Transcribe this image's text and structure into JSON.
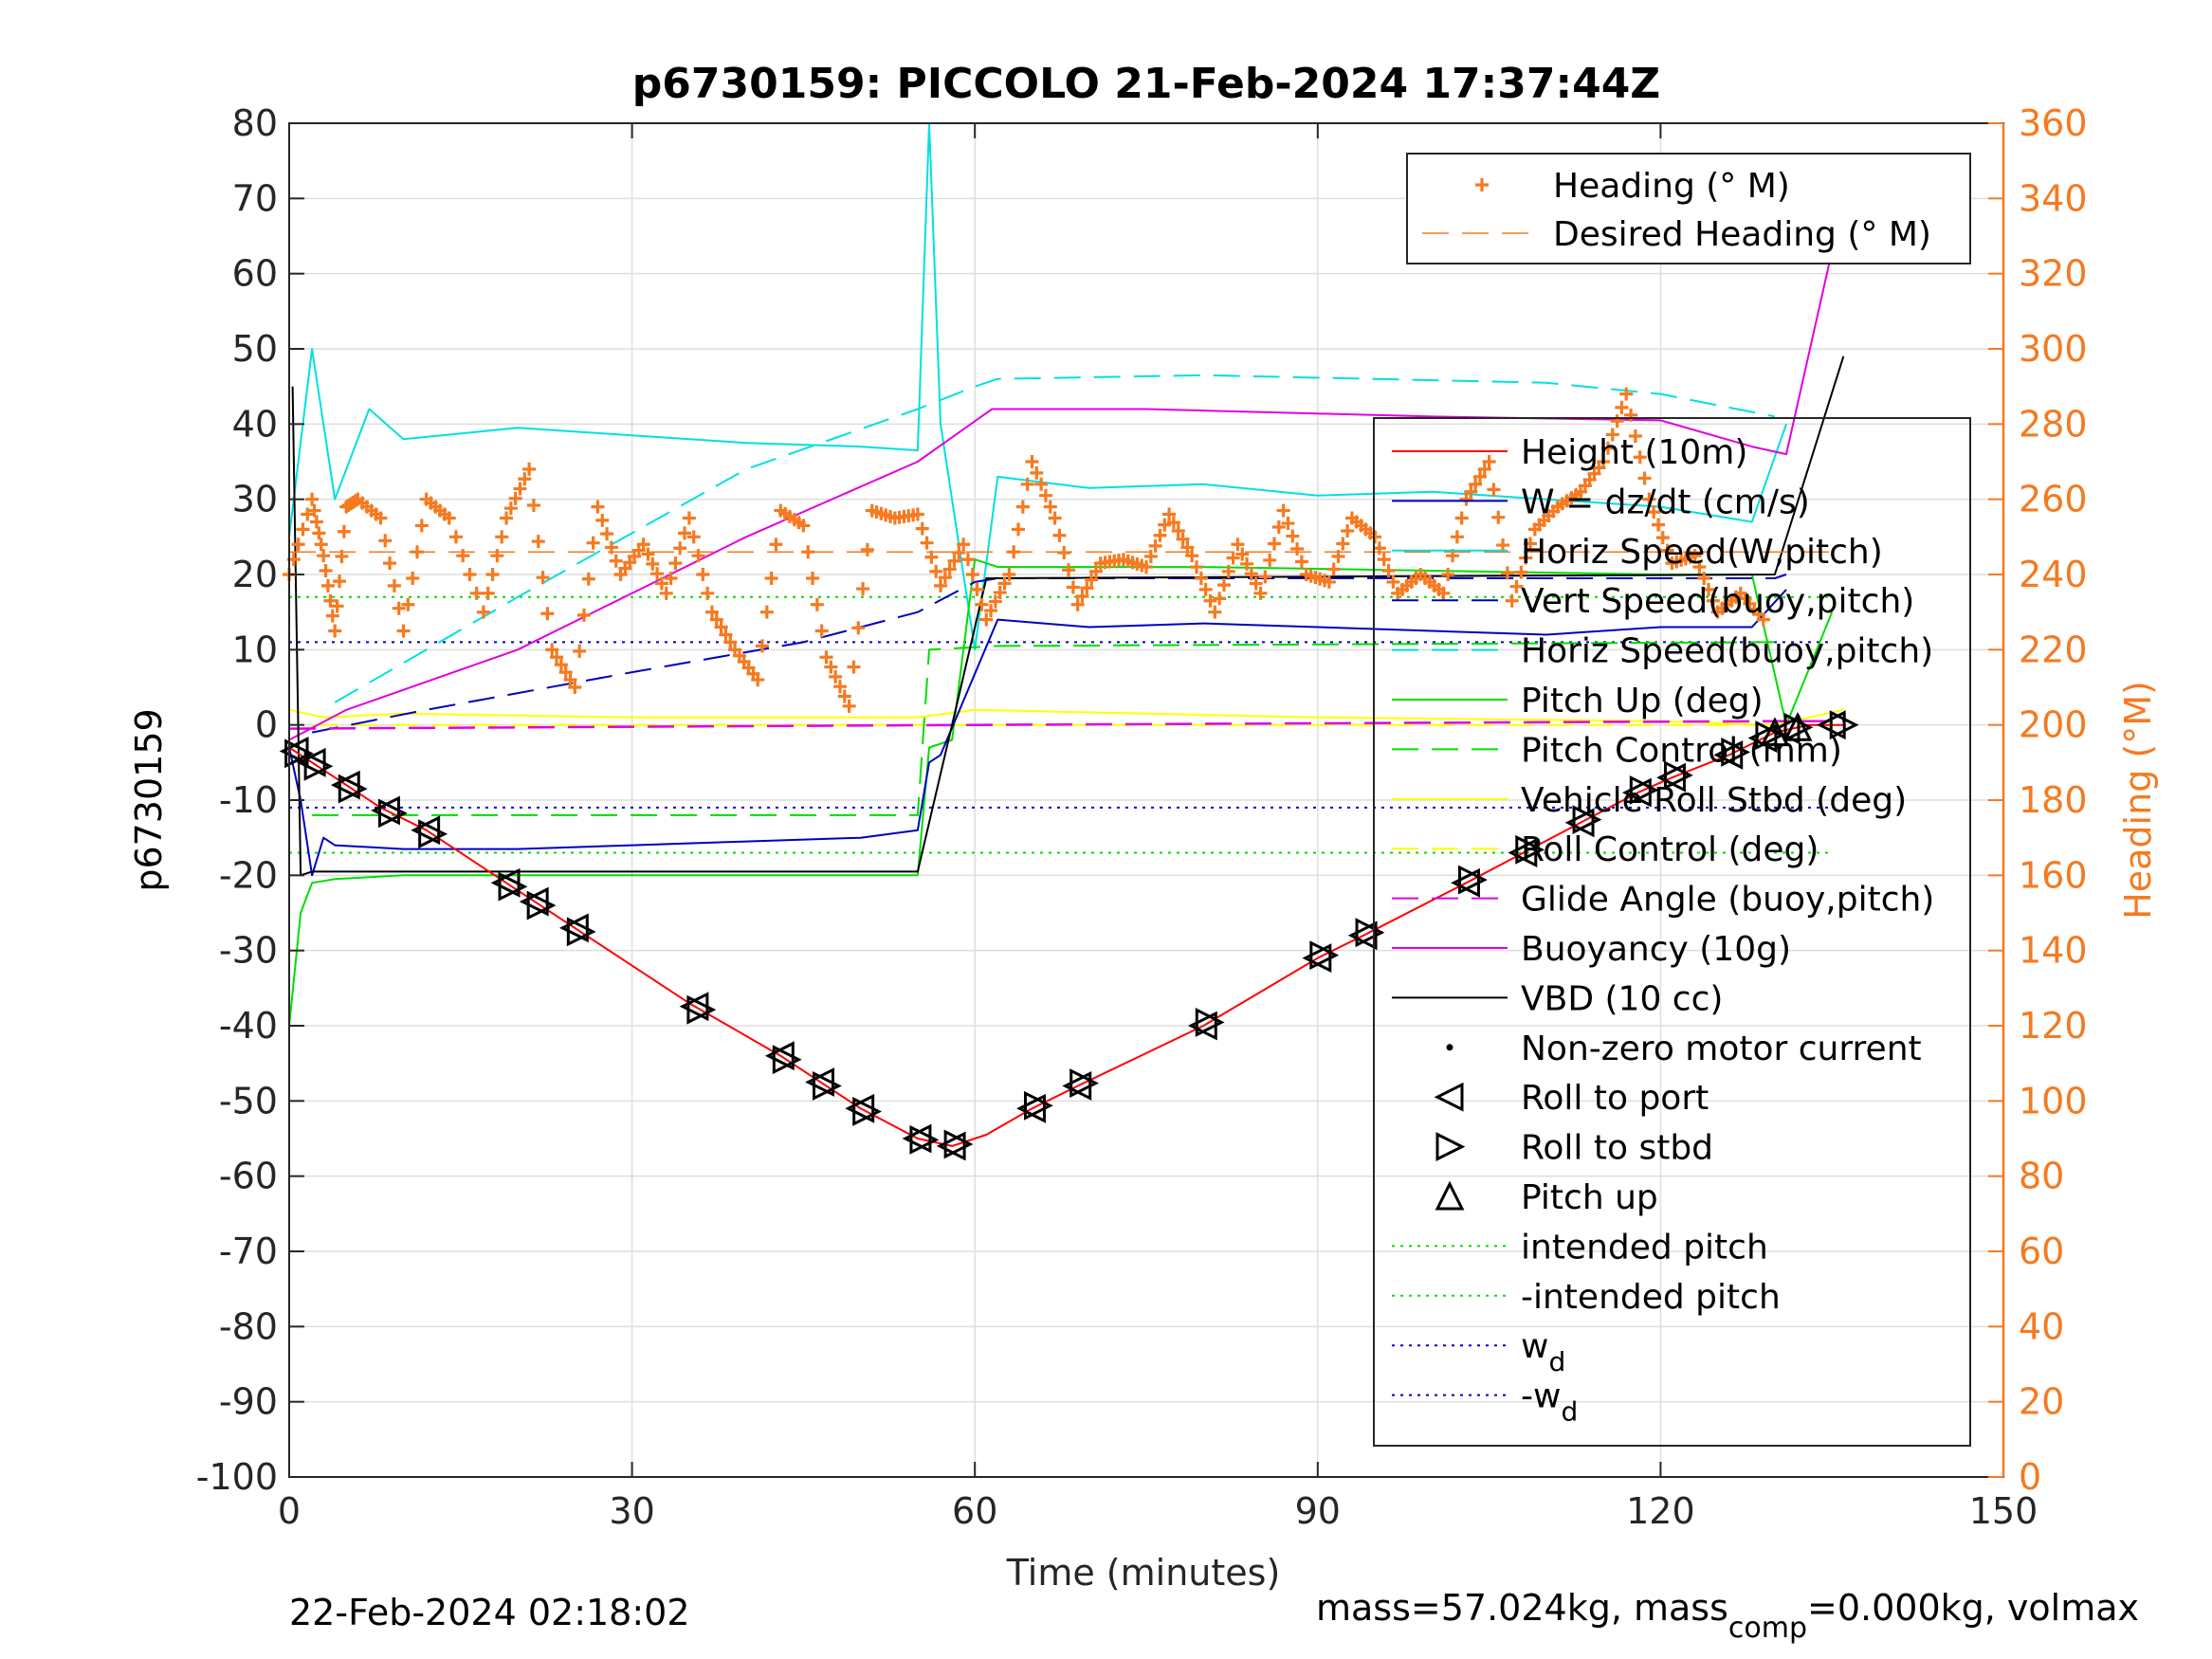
{
  "chart_data": {
    "type": "line",
    "title": "p6730159: PICCOLO 21-Feb-2024 17:37:44Z",
    "xlabel": "Time (minutes)",
    "ylabel_left": "p6730159",
    "ylabel_right": "Heading (°M)",
    "xlim": [
      0,
      150
    ],
    "ylim_left": [
      -100,
      80
    ],
    "ylim_right": [
      0,
      360
    ],
    "x_ticks": [
      "0",
      "30",
      "60",
      "90",
      "120",
      "150"
    ],
    "y_ticks_left": [
      "-100",
      "-90",
      "-80",
      "-70",
      "-60",
      "-50",
      "-40",
      "-30",
      "-20",
      "-10",
      "0",
      "10",
      "20",
      "30",
      "40",
      "50",
      "60",
      "70",
      "80"
    ],
    "y_ticks_right": [
      "0",
      "20",
      "40",
      "60",
      "80",
      "100",
      "120",
      "140",
      "160",
      "180",
      "200",
      "220",
      "240",
      "260",
      "280",
      "300",
      "320",
      "340",
      "360"
    ],
    "grid": true,
    "footer_left": "22-Feb-2024 02:18:02",
    "footer_right": {
      "pre": "mass=57.024kg, mass",
      "sub": "comp",
      "post": "=0.000kg, volmax"
    },
    "colors": {
      "heading": "#f57a20",
      "height": "#ff0000",
      "w": "#0000c0",
      "horiz_w": "#00e0e0",
      "vert_buoy": "#0000c0",
      "horiz_buoy": "#00e0e0",
      "pitch": "#00dd00",
      "pitch_control": "#00dd00",
      "roll": "#ffff00",
      "roll_control": "#ffff00",
      "glide": "#e000e0",
      "buoyancy": "#e000e0",
      "vbd": "#000000",
      "markers": "#000000"
    },
    "legend_heading": [
      {
        "label": "Heading (° M)",
        "style": "plus"
      },
      {
        "label": "Desired Heading (° M)",
        "style": "dash"
      }
    ],
    "legend_main": [
      {
        "label": "Height (10m)",
        "style": "solid",
        "color": "#ff0000"
      },
      {
        "label": "W = dz/dt (cm/s)",
        "style": "solid",
        "color": "#0000c0"
      },
      {
        "label": "Horiz Speed(W,pitch)",
        "style": "solid",
        "color": "#00e0e0"
      },
      {
        "label": "Vert Speed(buoy,pitch)",
        "style": "dash",
        "color": "#0000c0"
      },
      {
        "label": "Horiz Speed(buoy,pitch)",
        "style": "dash",
        "color": "#00e0e0"
      },
      {
        "label": "Pitch Up (deg)",
        "style": "solid",
        "color": "#00dd00"
      },
      {
        "label": "Pitch Control (mm)",
        "style": "dash",
        "color": "#00dd00"
      },
      {
        "label": "Vehicle Roll Stbd (deg)",
        "style": "solid",
        "color": "#ffff00"
      },
      {
        "label": "Roll Control (deg)",
        "style": "dash",
        "color": "#ffff00"
      },
      {
        "label": "Glide Angle (buoy,pitch)",
        "style": "dash",
        "color": "#e000e0"
      },
      {
        "label": "Buoyancy (10g)",
        "style": "solid",
        "color": "#e000e0"
      },
      {
        "label": "VBD (10 cc)",
        "style": "solid",
        "color": "#000000"
      },
      {
        "label": "Non-zero motor current",
        "style": "dot",
        "color": "#000000"
      },
      {
        "label": "Roll to port",
        "style": "tri-left",
        "color": "#000000"
      },
      {
        "label": "Roll to stbd",
        "style": "tri-right",
        "color": "#000000"
      },
      {
        "label": "Pitch up",
        "style": "tri-up",
        "color": "#000000"
      },
      {
        "label": "intended pitch",
        "style": "dotted",
        "color": "#00dd00"
      },
      {
        "label": "-intended pitch",
        "style": "dotted",
        "color": "#00dd00"
      },
      {
        "label": "w",
        "sub": "d",
        "style": "dotted",
        "color": "#0000c0"
      },
      {
        "label": "-w",
        "sub": "d",
        "style": "dotted",
        "color": "#0000c0"
      }
    ],
    "series": [
      {
        "name": "Height (10m)",
        "x": [
          0,
          2,
          8,
          12,
          19,
          25,
          35,
          43,
          50,
          55,
          58,
          61,
          65,
          69,
          80,
          90,
          94,
          103,
          108,
          113,
          118,
          121,
          126,
          130,
          133,
          136
        ],
        "values": [
          -3,
          -5,
          -11,
          -14,
          -21,
          -27,
          -37,
          -44,
          -51,
          -55,
          -56,
          -54.5,
          -51,
          -48,
          -40,
          -31,
          -28,
          -21,
          -17,
          -13,
          -9,
          -7,
          -4,
          -1,
          0,
          0
        ]
      },
      {
        "name": "W = dz/dt (cm/s)",
        "x": [
          0,
          1,
          2,
          3,
          4,
          10,
          20,
          30,
          40,
          50,
          55,
          56,
          57,
          62,
          70,
          80,
          90,
          100,
          110,
          120,
          128,
          131
        ],
        "values": [
          -3,
          -10,
          -20,
          -15,
          -16,
          -16.5,
          -16.5,
          -16,
          -15.5,
          -15,
          -14,
          -5,
          -4,
          14,
          13,
          13.5,
          13,
          12.5,
          12,
          13,
          13,
          18
        ]
      },
      {
        "name": "Horiz Speed(W,pitch)",
        "x": [
          0,
          2,
          4,
          7,
          10,
          20,
          30,
          40,
          50,
          55,
          56,
          57,
          60,
          62,
          70,
          80,
          90,
          100,
          110,
          120,
          128,
          131
        ],
        "values": [
          25,
          50,
          30,
          42,
          38,
          39.5,
          38.5,
          37.5,
          37,
          36.5,
          80,
          40,
          10,
          33,
          31.5,
          32,
          30.5,
          31,
          30,
          29,
          27,
          40
        ]
      },
      {
        "name": "Vert Speed(buoy,pitch)",
        "x": [
          2,
          12,
          30,
          45,
          55,
          60,
          62,
          130,
          131
        ],
        "values": [
          -1,
          2,
          7,
          11,
          15,
          19,
          19.5,
          19.5,
          20
        ]
      },
      {
        "name": "Horiz Speed(buoy,pitch)",
        "x": [
          4,
          20,
          40,
          55,
          60,
          62,
          80,
          110,
          120,
          130
        ],
        "values": [
          3,
          17,
          34,
          42,
          45,
          46,
          46.5,
          45.5,
          44,
          41
        ]
      },
      {
        "name": "Pitch Up (deg)",
        "x": [
          0,
          1,
          2,
          4,
          10,
          30,
          55,
          56,
          58,
          60,
          62,
          80,
          100,
          120,
          128,
          131,
          135
        ],
        "values": [
          -40,
          -25,
          -21,
          -20.5,
          -20,
          -20,
          -20,
          -3,
          -2,
          22,
          21,
          21,
          20.5,
          20,
          20,
          0,
          15
        ]
      },
      {
        "name": "Pitch Control (mm)",
        "x": [
          2,
          55,
          56,
          62,
          130
        ],
        "values": [
          -12,
          -12,
          10,
          10.5,
          11
        ]
      },
      {
        "name": "Vehicle Roll Stbd (deg)",
        "x": [
          0,
          3,
          10,
          30,
          55,
          60,
          90,
          120,
          130,
          136
        ],
        "values": [
          2,
          1,
          1.5,
          1,
          1,
          2,
          1,
          0.5,
          0,
          2
        ]
      },
      {
        "name": "Roll Control (deg)",
        "x": [
          2,
          55,
          60,
          130
        ],
        "values": [
          0,
          0,
          0,
          0
        ]
      },
      {
        "name": "Glide Angle (buoy,pitch)",
        "x": [
          0,
          60,
          130,
          136
        ],
        "values": [
          -0.5,
          0,
          0.5,
          0.5
        ]
      },
      {
        "name": "Buoyancy (10g)",
        "x": [
          0,
          5,
          20,
          40,
          55,
          61.5,
          75,
          100,
          120,
          128,
          131,
          135
        ],
        "values": [
          -2,
          2,
          10,
          25,
          35,
          42,
          42,
          41,
          40.5,
          37,
          36,
          63
        ]
      },
      {
        "name": "VBD (10 cc)",
        "x": [
          0.3,
          1,
          2,
          55,
          61,
          130,
          136
        ],
        "values": [
          45,
          -20,
          -19.5,
          -19.5,
          19.5,
          20,
          49
        ]
      },
      {
        "name": "Heading (° M)",
        "x": [
          0,
          2,
          3,
          4,
          5,
          6,
          8,
          10,
          12,
          14,
          17,
          19,
          21,
          23,
          25,
          27,
          29,
          31,
          33,
          35,
          37,
          39,
          41,
          43,
          45,
          47,
          49,
          51,
          53,
          55,
          57,
          59,
          61,
          63,
          65,
          67,
          69,
          71,
          73,
          75,
          77,
          79,
          81,
          83,
          85,
          87,
          89,
          91,
          93,
          95,
          97,
          99,
          101,
          103,
          105,
          107,
          109,
          111,
          113,
          115,
          117,
          119,
          121,
          123,
          125,
          127,
          129
        ],
        "values": [
          240,
          260,
          245,
          225,
          258,
          260,
          255,
          225,
          260,
          255,
          230,
          255,
          268,
          220,
          210,
          258,
          240,
          248,
          235,
          255,
          230,
          220,
          212,
          257,
          253,
          218,
          205,
          257,
          255,
          256,
          237,
          248,
          228,
          240,
          270,
          255,
          232,
          243,
          244,
          242,
          256,
          245,
          230,
          248,
          235,
          257,
          240,
          238,
          255,
          250,
          235,
          240,
          235,
          260,
          270,
          233,
          252,
          258,
          262,
          270,
          288,
          260,
          243,
          245,
          230,
          235,
          228
        ]
      },
      {
        "name": "Desired Heading (° M)",
        "x": [
          0,
          135
        ],
        "values": [
          246,
          246
        ]
      }
    ],
    "intended_pitch": [
      17,
      -17
    ],
    "w_d": [
      11,
      -11
    ],
    "roll_port_markers_x": [
      0.5,
      2,
      5,
      8.5,
      12,
      19,
      21.5,
      25,
      35.5,
      43,
      46.5,
      50,
      55,
      58,
      65,
      69,
      80,
      90,
      94,
      103,
      108,
      113,
      118,
      121,
      126,
      129,
      131,
      135
    ],
    "roll_stbd_markers_x": [
      0.8,
      2.5,
      5.5,
      9,
      12.5,
      19.5,
      22,
      25.5,
      36,
      43.5,
      47,
      50.5,
      55.5,
      58.5,
      65.5,
      69.5,
      80.5,
      90.5,
      94.5,
      103.5,
      108.5,
      113.5,
      118.5,
      121.5,
      126.5,
      129.5,
      132,
      136
    ],
    "pitch_up_markers_x": [
      130,
      132
    ]
  }
}
